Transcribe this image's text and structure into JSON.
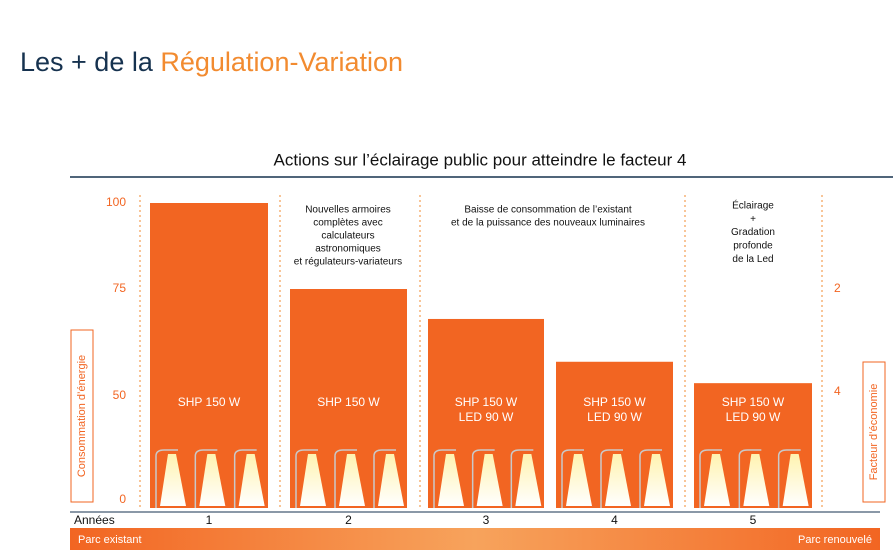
{
  "header": {
    "title_start": "Les + de la",
    "title_highlight": "Régulation-Variation"
  },
  "chart_data": {
    "type": "bar",
    "title": "Actions sur l’éclairage public pour atteindre le facteur 4",
    "ylabel": "Consommation d’énergie",
    "y2label": "Facteur d’économie",
    "xlabel": "Années",
    "categories": [
      "1",
      "2",
      "3",
      "4",
      "5"
    ],
    "values": [
      100,
      75,
      68,
      58,
      53
    ],
    "color": "#f26522",
    "ylim": [
      0,
      100
    ],
    "yticks": [
      0,
      50,
      75,
      100
    ],
    "y2ticks": [
      2,
      4
    ],
    "bar_labels": [
      [
        "SHP 150 W"
      ],
      [
        "SHP 150 W"
      ],
      [
        "SHP 150 W",
        "LED 90 W"
      ],
      [
        "SHP 150 W",
        "LED 90 W"
      ],
      [
        "SHP 150 W",
        "LED 90 W"
      ]
    ],
    "annotations": [
      [
        "Nouvelles armoires",
        "complètes avec",
        "calculateurs",
        "astronomiques",
        "et régulateurs-variateurs"
      ],
      [
        "Baisse de consommation de l’existant",
        "et de la puissance des nouveaux luminaires"
      ],
      [
        "Éclairage",
        "+",
        "Gradation",
        "profonde",
        "de la Led"
      ]
    ],
    "band_left": "Parc existant",
    "band_right": "Parc renouvelé"
  }
}
